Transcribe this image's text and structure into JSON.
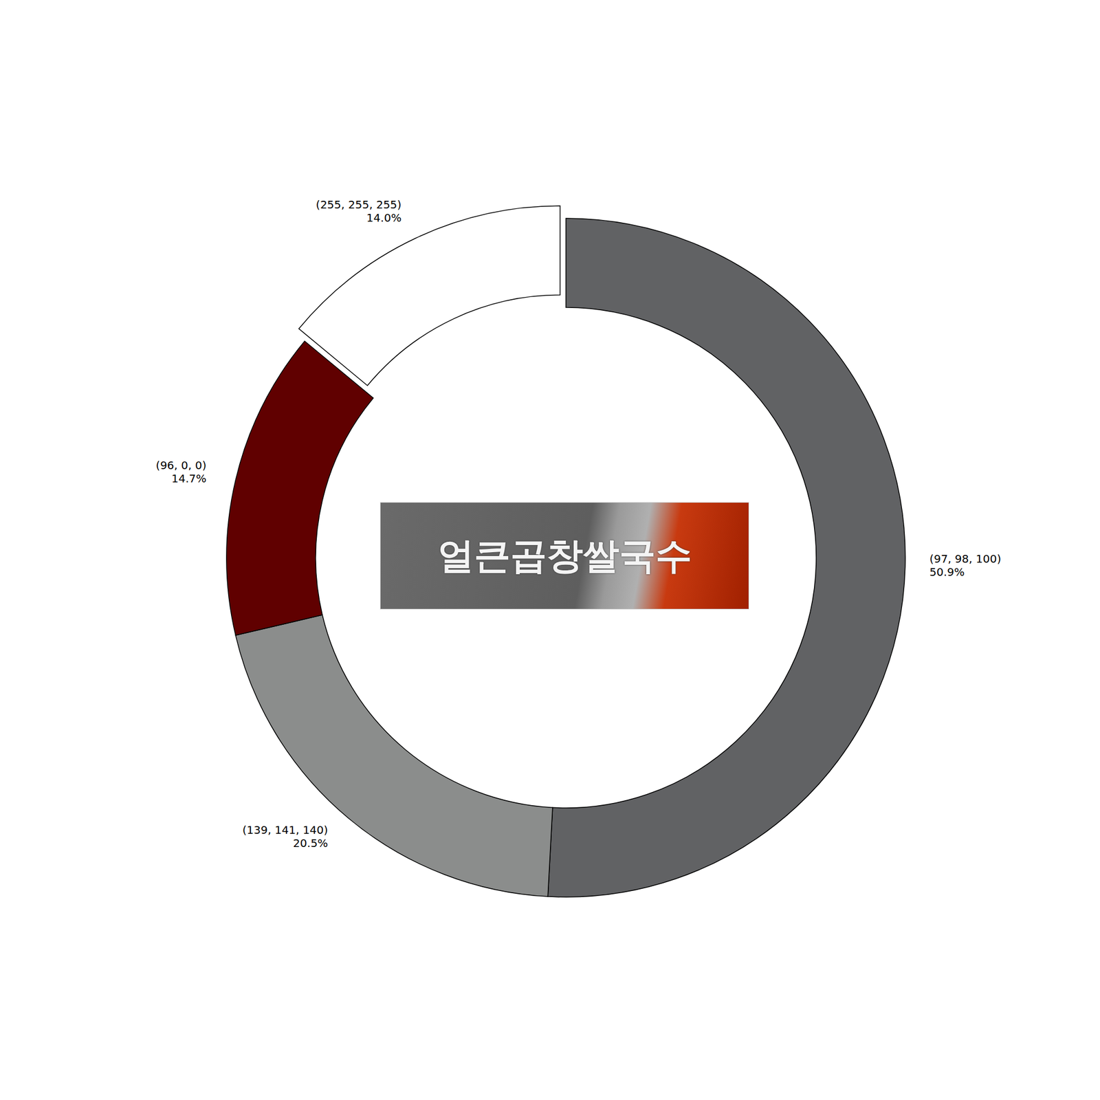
{
  "chart_data": {
    "type": "donut",
    "categories": [
      "(97, 98, 100)",
      "(139, 141, 140)",
      "(96, 0, 0)",
      "(255, 255, 255)"
    ],
    "values": [
      50.9,
      20.5,
      14.7,
      14.0
    ],
    "value_labels": [
      "50.9%",
      "20.5%",
      "14.7%",
      "14.0%"
    ],
    "colors": [
      "#616264",
      "#8b8d8c",
      "#600000",
      "#ffffff"
    ],
    "data_labels": true,
    "annotations": [
      "얼큰곱창쌀국수"
    ]
  }
}
